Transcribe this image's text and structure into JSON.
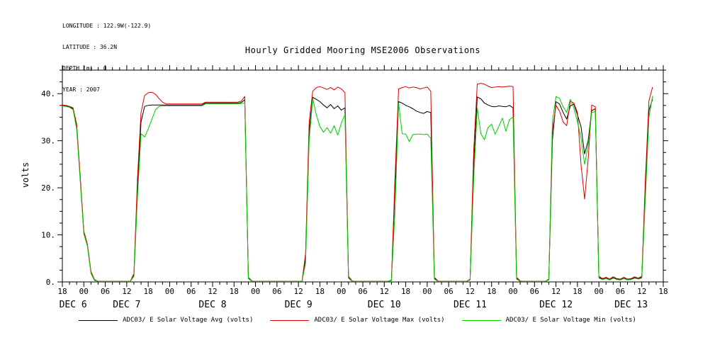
{
  "title": "Hourly Gridded Mooring MSE2006 Observations",
  "meta": {
    "lines": [
      "LONGITUDE : 122.9W(-122.9)",
      "LATITUDE : 36.2N",
      "DEPTH (m) : 0",
      "YEAR : 2007"
    ]
  },
  "chart_data": {
    "type": "line",
    "title": "Hourly Gridded Mooring MSE2006 Observations",
    "ylabel": "volts",
    "ylim": [
      0,
      45
    ],
    "xlim": [
      0,
      168
    ],
    "x_step_hours": 1,
    "x_tick_labels": [
      "18",
      "00",
      "06",
      "12",
      "18",
      "00",
      "06",
      "12",
      "18",
      "00",
      "06",
      "12",
      "18",
      "00",
      "06",
      "12",
      "18",
      "00",
      "06",
      "12",
      "18",
      "00",
      "06",
      "12",
      "18",
      "00",
      "06",
      "12",
      "18"
    ],
    "day_labels": [
      {
        "label": "DEC 6",
        "hour": 3
      },
      {
        "label": "DEC 7",
        "hour": 18
      },
      {
        "label": "DEC 8",
        "hour": 42
      },
      {
        "label": "DEC 9",
        "hour": 66
      },
      {
        "label": "DEC 10",
        "hour": 90
      },
      {
        "label": "DEC 11",
        "hour": 114
      },
      {
        "label": "DEC 12",
        "hour": 138
      },
      {
        "label": "DEC 13",
        "hour": 159
      }
    ],
    "y_ticks": [
      {
        "v": 0,
        "label": "0."
      },
      {
        "v": 10,
        "label": "10."
      },
      {
        "v": 20,
        "label": "20."
      },
      {
        "v": 30,
        "label": "30."
      },
      {
        "v": 40,
        "label": "40."
      }
    ],
    "series": [
      {
        "key": "avg",
        "name": "ADC03/ E Solar Voltage Avg (volts)",
        "color": "#000000",
        "values": [
          37.5,
          37.4,
          37.2,
          36.8,
          33,
          22,
          10.5,
          7.8,
          2,
          0.4,
          0.1,
          0.1,
          0.1,
          0.1,
          0.1,
          0.1,
          0.1,
          0.1,
          0.1,
          0.1,
          1.5,
          20,
          34,
          37.3,
          37.5,
          37.6,
          37.6,
          37.6,
          37.6,
          37.6,
          37.6,
          37.6,
          37.6,
          37.6,
          37.6,
          37.6,
          37.6,
          37.6,
          37.6,
          37.6,
          38,
          38,
          38,
          38,
          38,
          38,
          38,
          38,
          38,
          38,
          38.1,
          38.7,
          0.8,
          0.15,
          0.1,
          0.1,
          0.1,
          0.1,
          0.1,
          0.1,
          0.1,
          0.1,
          0.1,
          0.1,
          0.1,
          0.1,
          0.1,
          0.1,
          5,
          32,
          39.2,
          38.8,
          38.3,
          37.6,
          37,
          37.7,
          36.8,
          37.4,
          36.5,
          37,
          1,
          0.15,
          0.1,
          0.1,
          0.1,
          0.1,
          0.1,
          0.1,
          0.1,
          0.1,
          0.1,
          0.1,
          0.3,
          20,
          38.3,
          38,
          37.5,
          37.2,
          36.8,
          36.3,
          36,
          35.8,
          36.2,
          36,
          0.8,
          0.15,
          0.1,
          0.1,
          0.1,
          0.1,
          0.1,
          0.1,
          0.1,
          0.1,
          0.5,
          25,
          39.3,
          38.9,
          38,
          37.6,
          37.3,
          37.2,
          37.4,
          37.3,
          37.2,
          37.5,
          37,
          0.8,
          0.15,
          0.1,
          0.1,
          0.1,
          0.1,
          0.1,
          0.1,
          0.1,
          0.5,
          30,
          38.3,
          37.8,
          36,
          34.6,
          37.4,
          37.8,
          35.5,
          33,
          27.2,
          30,
          36.4,
          36.8,
          1,
          0.6,
          0.8,
          0.5,
          0.9,
          0.6,
          0.5,
          0.8,
          0.5,
          0.6,
          0.9,
          0.7,
          1,
          20,
          36.5,
          38.8,
          null,
          null,
          null
        ]
      },
      {
        "key": "max",
        "name": "ADC03/ E Solar Voltage Max (volts)",
        "color": "#dd0000",
        "values": [
          37.6,
          37.5,
          37.3,
          37,
          33.5,
          22.5,
          10.8,
          8,
          2.2,
          0.5,
          0.1,
          0.1,
          0.1,
          0.1,
          0.1,
          0.1,
          0.1,
          0.1,
          0.1,
          0.1,
          1.8,
          22,
          36,
          39.6,
          40.2,
          40.3,
          39.9,
          39,
          38.2,
          37.8,
          37.8,
          37.8,
          37.8,
          37.8,
          37.8,
          37.8,
          37.8,
          37.8,
          37.8,
          37.8,
          38.2,
          38.2,
          38.2,
          38.2,
          38.2,
          38.2,
          38.2,
          38.2,
          38.2,
          38.2,
          38.4,
          39.4,
          1,
          0.2,
          0.1,
          0.1,
          0.1,
          0.1,
          0.1,
          0.1,
          0.1,
          0.1,
          0.1,
          0.1,
          0.1,
          0.1,
          0.1,
          0.1,
          6,
          34,
          40.5,
          41.3,
          41.5,
          41.2,
          40.9,
          41.3,
          40.8,
          41.4,
          41,
          40.2,
          1.2,
          0.2,
          0.1,
          0.1,
          0.1,
          0.1,
          0.1,
          0.1,
          0.1,
          0.1,
          0.1,
          0.1,
          0.4,
          22,
          41,
          41.3,
          41.5,
          41.2,
          41.4,
          41.3,
          41,
          41.2,
          41.4,
          40.5,
          1,
          0.2,
          0.1,
          0.1,
          0.1,
          0.1,
          0.1,
          0.1,
          0.1,
          0.1,
          0.6,
          28,
          42,
          42.2,
          42,
          41.6,
          41.3,
          41.4,
          41.5,
          41.4,
          41.5,
          41.6,
          41.5,
          1,
          0.2,
          0.1,
          0.1,
          0.1,
          0.1,
          0.1,
          0.1,
          0.1,
          0.6,
          32,
          37.5,
          36.3,
          34,
          33.2,
          38.4,
          38,
          36,
          25,
          17.6,
          26,
          37.6,
          37.2,
          1.2,
          0.7,
          1,
          0.6,
          1.1,
          0.7,
          0.6,
          1,
          0.6,
          0.7,
          1.1,
          0.8,
          1.2,
          22,
          38.5,
          41.4,
          null,
          null,
          null
        ]
      },
      {
        "key": "min",
        "name": "ADC03/ E Solar Voltage Min (volts)",
        "color": "#00cc00",
        "values": [
          37.4,
          37.3,
          37.1,
          36.6,
          32.5,
          21.5,
          10.2,
          7.6,
          1.8,
          0.3,
          0.1,
          0.1,
          0.1,
          0.1,
          0.1,
          0.1,
          0.1,
          0.1,
          0.1,
          0.1,
          1.2,
          18,
          31.5,
          30.8,
          32.5,
          34.5,
          36.5,
          37.3,
          37.4,
          37.4,
          37.4,
          37.4,
          37.4,
          37.4,
          37.4,
          37.4,
          37.4,
          37.4,
          37.4,
          37.4,
          37.8,
          37.8,
          37.8,
          37.8,
          37.8,
          37.8,
          37.8,
          37.8,
          37.8,
          37.8,
          37.9,
          38,
          0.7,
          0.1,
          0.1,
          0.1,
          0.1,
          0.1,
          0.1,
          0.1,
          0.1,
          0.1,
          0.1,
          0.1,
          0.1,
          0.1,
          0.1,
          0.1,
          4,
          30,
          39,
          35.5,
          33,
          31.8,
          32.8,
          31.6,
          33.2,
          31.2,
          33.8,
          35.5,
          0.8,
          0.1,
          0.1,
          0.1,
          0.1,
          0.1,
          0.1,
          0.1,
          0.1,
          0.1,
          0.1,
          0.1,
          0.25,
          15,
          38,
          31.5,
          31.4,
          29.8,
          31.3,
          31.4,
          31.4,
          31.3,
          31.4,
          30.5,
          0.6,
          0.1,
          0.1,
          0.1,
          0.1,
          0.1,
          0.1,
          0.1,
          0.1,
          0.1,
          0.4,
          22,
          37,
          31.5,
          30.2,
          32.8,
          33.5,
          31.4,
          33,
          34.8,
          32,
          34.5,
          35,
          0.6,
          0.1,
          0.1,
          0.1,
          0.1,
          0.1,
          0.1,
          0.1,
          0.1,
          0.4,
          34,
          39.4,
          39,
          37.2,
          36,
          38.8,
          37,
          34,
          30.5,
          25,
          29,
          36,
          36.2,
          0.8,
          0.5,
          0.7,
          0.4,
          0.8,
          0.5,
          0.4,
          0.7,
          0.4,
          0.5,
          0.8,
          0.6,
          0.8,
          18,
          35,
          39.5,
          null,
          null,
          null
        ]
      }
    ]
  }
}
